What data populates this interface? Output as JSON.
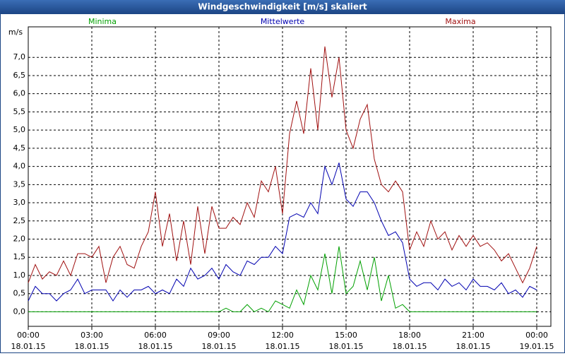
{
  "chart_data": {
    "type": "line",
    "title": "Windgeschwindigkeit [m/s] skaliert",
    "ylabel": "m/s",
    "x": [
      "18.01.15 00:00",
      "18.01.15 00:20",
      "18.01.15 00:40",
      "18.01.15 01:00",
      "18.01.15 01:20",
      "18.01.15 01:40",
      "18.01.15 02:00",
      "18.01.15 02:20",
      "18.01.15 02:40",
      "18.01.15 03:00",
      "18.01.15 03:20",
      "18.01.15 03:40",
      "18.01.15 04:00",
      "18.01.15 04:20",
      "18.01.15 04:40",
      "18.01.15 05:00",
      "18.01.15 05:20",
      "18.01.15 05:40",
      "18.01.15 06:00",
      "18.01.15 06:20",
      "18.01.15 06:40",
      "18.01.15 07:00",
      "18.01.15 07:20",
      "18.01.15 07:40",
      "18.01.15 08:00",
      "18.01.15 08:20",
      "18.01.15 08:40",
      "18.01.15 09:00",
      "18.01.15 09:20",
      "18.01.15 09:40",
      "18.01.15 10:00",
      "18.01.15 10:20",
      "18.01.15 10:40",
      "18.01.15 11:00",
      "18.01.15 11:20",
      "18.01.15 11:40",
      "18.01.15 12:00",
      "18.01.15 12:20",
      "18.01.15 12:40",
      "18.01.15 13:00",
      "18.01.15 13:20",
      "18.01.15 13:40",
      "18.01.15 14:00",
      "18.01.15 14:20",
      "18.01.15 14:40",
      "18.01.15 15:00",
      "18.01.15 15:20",
      "18.01.15 15:40",
      "18.01.15 16:00",
      "18.01.15 16:20",
      "18.01.15 16:40",
      "18.01.15 17:00",
      "18.01.15 17:20",
      "18.01.15 17:40",
      "18.01.15 18:00",
      "18.01.15 18:20",
      "18.01.15 18:40",
      "18.01.15 19:00",
      "18.01.15 19:20",
      "18.01.15 19:40",
      "18.01.15 20:00",
      "18.01.15 20:20",
      "18.01.15 20:40",
      "18.01.15 21:00",
      "18.01.15 21:20",
      "18.01.15 21:40",
      "18.01.15 22:00",
      "18.01.15 22:20",
      "18.01.15 22:40",
      "18.01.15 23:00",
      "18.01.15 23:20",
      "18.01.15 23:40",
      "19.01.15 00:00"
    ],
    "series": [
      {
        "name": "Minima",
        "color": "#00a000",
        "values": [
          0,
          0,
          0,
          0,
          0,
          0,
          0,
          0,
          0,
          0,
          0,
          0,
          0,
          0,
          0,
          0,
          0,
          0,
          0,
          0,
          0,
          0,
          0,
          0,
          0,
          0,
          0,
          0,
          0.1,
          0,
          0,
          0.2,
          0,
          0.1,
          0,
          0.3,
          0.2,
          0.1,
          0.6,
          0.2,
          1.0,
          0.6,
          1.6,
          0.5,
          1.8,
          0.5,
          0.7,
          1.4,
          0.6,
          1.5,
          0.3,
          1.0,
          0.1,
          0.2,
          0,
          0,
          0,
          0,
          0,
          0,
          0,
          0,
          0,
          0,
          0,
          0,
          0,
          0,
          0,
          0,
          0,
          0,
          0
        ]
      },
      {
        "name": "Mittelwerte",
        "color": "#0000b0",
        "values": [
          0.3,
          0.7,
          0.5,
          0.5,
          0.3,
          0.5,
          0.6,
          0.9,
          0.5,
          0.6,
          0.6,
          0.6,
          0.3,
          0.6,
          0.4,
          0.6,
          0.6,
          0.7,
          0.5,
          0.6,
          0.5,
          0.9,
          0.7,
          1.2,
          0.9,
          1.0,
          1.2,
          0.9,
          1.3,
          1.1,
          1.0,
          1.4,
          1.3,
          1.5,
          1.5,
          1.8,
          1.6,
          2.6,
          2.7,
          2.6,
          3.0,
          2.7,
          4.0,
          3.5,
          4.1,
          3.1,
          2.9,
          3.3,
          3.3,
          3.0,
          2.5,
          2.1,
          2.2,
          1.9,
          0.9,
          0.7,
          0.8,
          0.8,
          0.6,
          0.9,
          0.7,
          0.8,
          0.6,
          0.9,
          0.7,
          0.7,
          0.6,
          0.8,
          0.5,
          0.6,
          0.4,
          0.7,
          0.6
        ]
      },
      {
        "name": "Maxima",
        "color": "#a01010",
        "values": [
          0.8,
          1.3,
          0.9,
          1.1,
          1.0,
          1.4,
          1.0,
          1.6,
          1.6,
          1.5,
          1.8,
          0.8,
          1.5,
          1.8,
          1.3,
          1.2,
          1.8,
          2.2,
          3.3,
          1.8,
          2.7,
          1.4,
          2.5,
          1.3,
          2.9,
          1.6,
          2.9,
          2.3,
          2.3,
          2.6,
          2.4,
          3.0,
          2.6,
          3.6,
          3.3,
          4.0,
          2.7,
          4.9,
          5.8,
          4.9,
          6.7,
          5.0,
          7.3,
          5.9,
          7.0,
          5.0,
          4.5,
          5.3,
          5.7,
          4.2,
          3.5,
          3.3,
          3.6,
          3.3,
          1.7,
          2.2,
          1.8,
          2.5,
          2.0,
          2.2,
          1.7,
          2.1,
          1.8,
          2.1,
          1.8,
          1.9,
          1.7,
          1.4,
          1.6,
          1.2,
          0.8,
          1.2,
          1.8
        ]
      }
    ],
    "xlim": [
      "18.01.15 00:00",
      "19.01.15 00:40"
    ],
    "xticks": [
      {
        "value": "18.01.15 00:00",
        "label": "00:00",
        "date": "18.01.15"
      },
      {
        "value": "18.01.15 03:00",
        "label": "03:00",
        "date": "18.01.15"
      },
      {
        "value": "18.01.15 06:00",
        "label": "06:00",
        "date": "18.01.15"
      },
      {
        "value": "18.01.15 09:00",
        "label": "09:00",
        "date": "18.01.15"
      },
      {
        "value": "18.01.15 12:00",
        "label": "12:00",
        "date": "18.01.15"
      },
      {
        "value": "18.01.15 15:00",
        "label": "15:00",
        "date": "18.01.15"
      },
      {
        "value": "18.01.15 18:00",
        "label": "18:00",
        "date": "18.01.15"
      },
      {
        "value": "18.01.15 21:00",
        "label": "21:00",
        "date": "18.01.15"
      },
      {
        "value": "19.01.15 00:00",
        "label": "00:00",
        "date": "19.01.15"
      }
    ],
    "ylim": [
      -0.4,
      7.84
    ],
    "yticks": [
      {
        "value": 0,
        "label": "0,0"
      },
      {
        "value": 0.5,
        "label": "0,5"
      },
      {
        "value": 1,
        "label": "1,0"
      },
      {
        "value": 1.5,
        "label": "1,5"
      },
      {
        "value": 2,
        "label": "2,0"
      },
      {
        "value": 2.5,
        "label": "2,5"
      },
      {
        "value": 3,
        "label": "3,0"
      },
      {
        "value": 3.5,
        "label": "3,5"
      },
      {
        "value": 4,
        "label": "4,0"
      },
      {
        "value": 4.5,
        "label": "4,5"
      },
      {
        "value": 5,
        "label": "5,0"
      },
      {
        "value": 5.5,
        "label": "5,5"
      },
      {
        "value": 6,
        "label": "6,0"
      },
      {
        "value": 6.5,
        "label": "6,5"
      },
      {
        "value": 7,
        "label": "7,0"
      }
    ],
    "grid": true
  }
}
